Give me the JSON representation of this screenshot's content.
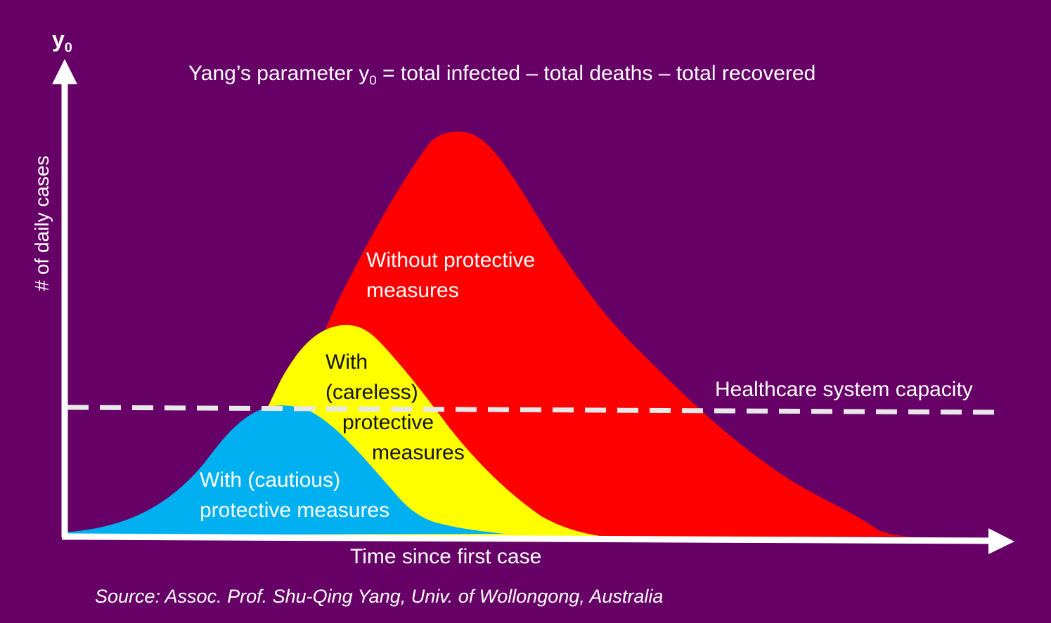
{
  "title": {
    "prefix": "Yang’s parameter y",
    "subscript": "0",
    "suffix": " = total infected – total deaths – total recovered"
  },
  "y_axis": {
    "variable": "y",
    "variable_subscript": "0",
    "label": "# of daily cases"
  },
  "x_axis": {
    "label": "Time since first case"
  },
  "curves": {
    "red": {
      "label_line1": "Without protective",
      "label_line2": "measures",
      "color": "#ff0000"
    },
    "yellow": {
      "label_line1": "With",
      "label_line2": "(careless)",
      "label_line3": "protective",
      "label_line4": "measures",
      "color": "#ffff00"
    },
    "blue": {
      "label_line1": "With (cautious)",
      "label_line2": "protective measures",
      "color": "#00b0f0"
    }
  },
  "capacity": {
    "label": "Healthcare system capacity",
    "color": "#e8e8e8"
  },
  "source": "Source: Assoc. Prof. Shu-Qing Yang, Univ. of Wollongong, Australia",
  "colors": {
    "background": "#660066",
    "axis": "#ffffff"
  }
}
